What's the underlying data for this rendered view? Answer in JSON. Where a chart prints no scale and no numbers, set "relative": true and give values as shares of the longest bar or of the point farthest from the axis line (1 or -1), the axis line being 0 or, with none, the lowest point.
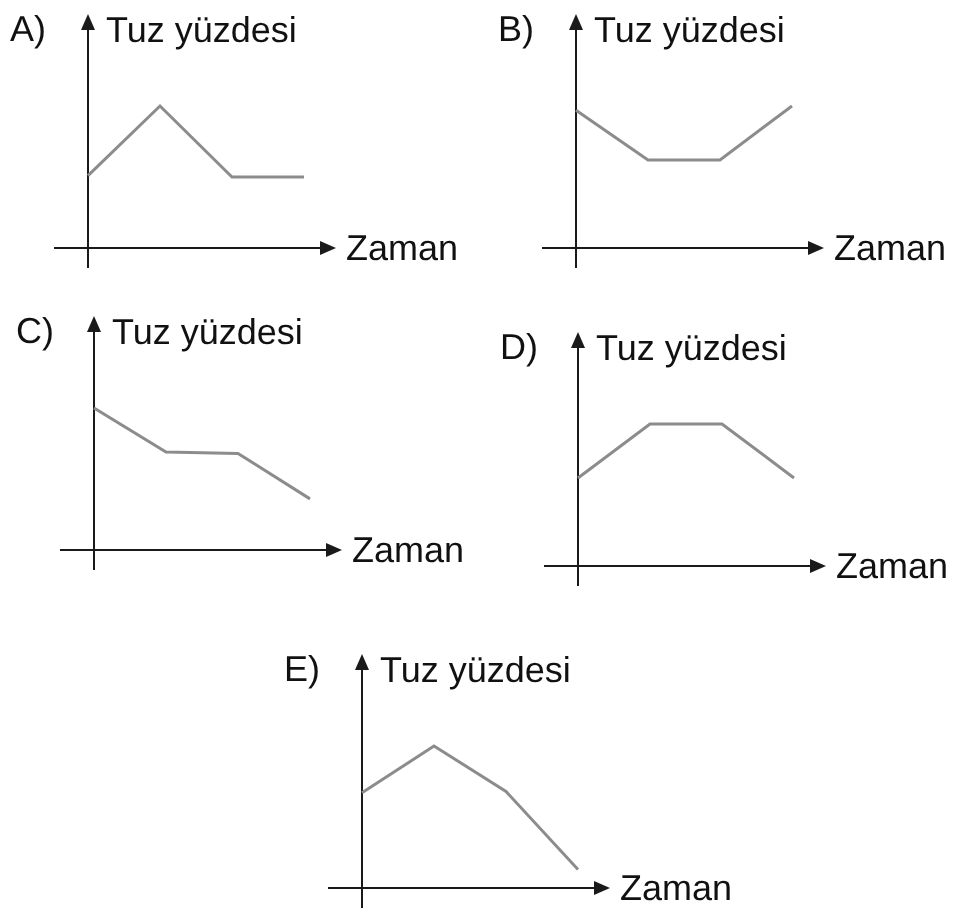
{
  "chart_data": [
    {
      "type": "line",
      "title": "A)",
      "ylabel": "Tuz yüzdesi",
      "xlabel": "Zaman",
      "categories": [
        null,
        null,
        null,
        null
      ],
      "values": [
        0.51,
        1,
        0.5,
        0.5
      ],
      "color": "#8c8c8c",
      "relative": true
    },
    {
      "type": "line",
      "title": "B)",
      "ylabel": "Tuz yüzdesi",
      "xlabel": "Zaman",
      "categories": [
        null,
        null,
        null,
        null
      ],
      "values": [
        0.97,
        0.62,
        0.62,
        1
      ],
      "color": "#8c8c8c",
      "relative": true
    },
    {
      "type": "line",
      "title": "C)",
      "ylabel": "Tuz yüzdesi",
      "xlabel": "Zaman",
      "categories": [
        null,
        null,
        null,
        null
      ],
      "values": [
        1,
        0.69,
        0.68,
        0.36
      ],
      "color": "#8c8c8c",
      "relative": true
    },
    {
      "type": "line",
      "title": "D)",
      "ylabel": "Tuz yüzdesi",
      "xlabel": "Zaman",
      "categories": [
        null,
        null,
        null,
        null
      ],
      "values": [
        0.62,
        1,
        1,
        0.62
      ],
      "color": "#8c8c8c",
      "relative": true
    },
    {
      "type": "line",
      "title": "E)",
      "ylabel": "Tuz yüzdesi",
      "xlabel": "Zaman",
      "categories": [
        null,
        null,
        null,
        null
      ],
      "values": [
        0.67,
        1,
        0.68,
        0.13
      ],
      "color": "#8c8c8c",
      "relative": true
    }
  ]
}
